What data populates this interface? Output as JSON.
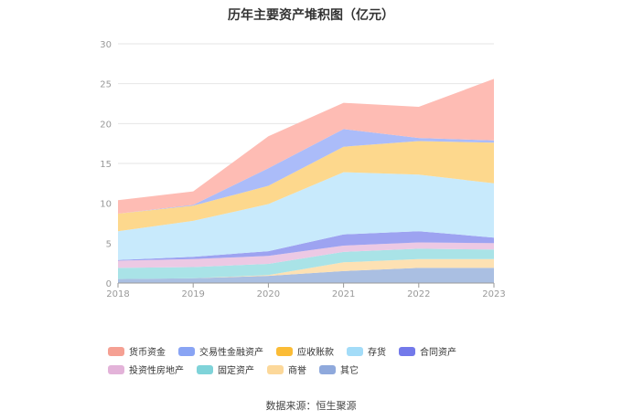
{
  "chart_data": {
    "type": "area",
    "stacked": true,
    "title": "历年主要资产堆积图（亿元）",
    "x": [
      "2018",
      "2019",
      "2020",
      "2021",
      "2022",
      "2023"
    ],
    "ylim": [
      0,
      30
    ],
    "yticks": [
      0,
      5,
      10,
      15,
      20,
      25,
      30
    ],
    "grid": true,
    "legend_position": "bottom",
    "series": [
      {
        "name": "其它",
        "color": "#aabfe2",
        "values": [
          0.5,
          0.6,
          0.9,
          1.5,
          1.9,
          1.9
        ]
      },
      {
        "name": "商誉",
        "color": "#fde1b3",
        "values": [
          0.0,
          0.0,
          0.1,
          1.1,
          1.1,
          1.1
        ]
      },
      {
        "name": "固定资产",
        "color": "#a9e3e7",
        "values": [
          1.4,
          1.4,
          1.4,
          1.3,
          1.3,
          1.2
        ]
      },
      {
        "name": "投资性房地产",
        "color": "#ecc9e4",
        "values": [
          0.9,
          1.0,
          1.0,
          0.8,
          0.8,
          0.8
        ]
      },
      {
        "name": "合同资产",
        "color": "#9da3f1",
        "values": [
          0.1,
          0.3,
          0.6,
          1.4,
          1.4,
          0.7
        ]
      },
      {
        "name": "存货",
        "color": "#c8eafc",
        "values": [
          3.6,
          4.5,
          5.9,
          7.8,
          7.1,
          6.8
        ]
      },
      {
        "name": "应收账款",
        "color": "#fdd88d",
        "values": [
          2.2,
          1.9,
          2.3,
          3.2,
          4.2,
          5.1
        ]
      },
      {
        "name": "交易性金融资产",
        "color": "#abbcf9",
        "values": [
          0.0,
          0.1,
          2.2,
          2.2,
          0.4,
          0.3
        ]
      },
      {
        "name": "货币资金",
        "color": "#febcb4",
        "values": [
          1.7,
          1.7,
          4.0,
          3.3,
          3.9,
          7.7
        ]
      }
    ],
    "legend": [
      {
        "name": "货币资金",
        "color": "#f5a093"
      },
      {
        "name": "交易性金融资产",
        "color": "#89a4f4"
      },
      {
        "name": "应收账款",
        "color": "#fbbc36"
      },
      {
        "name": "存货",
        "color": "#a3dcf8"
      },
      {
        "name": "合同资产",
        "color": "#7379ea"
      },
      {
        "name": "投资性房地产",
        "color": "#e3b3d9"
      },
      {
        "name": "固定资产",
        "color": "#7fd3d9"
      },
      {
        "name": "商誉",
        "color": "#fcd89a"
      },
      {
        "name": "其它",
        "color": "#8fa9dc"
      }
    ]
  },
  "source_text": "数据来源：恒生聚源"
}
